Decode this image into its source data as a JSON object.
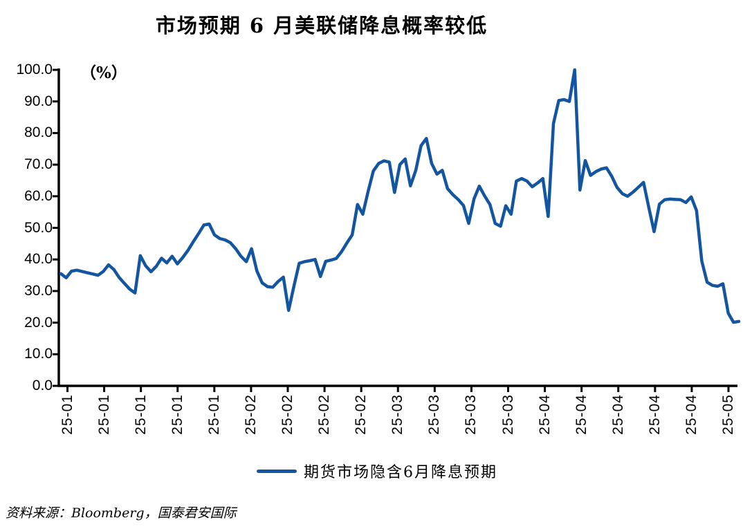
{
  "header": {
    "title": "市场预期 6 月美联储降息概率较低"
  },
  "y_axis": {
    "unit_label": "（%）"
  },
  "legend": {
    "label": "期货市场隐含6月降息预期"
  },
  "footer": {
    "source": "资料来源：Bloomberg，国泰君安国际"
  },
  "colors": {
    "line": "#1455A0",
    "axis": "#000000"
  },
  "chart_data": {
    "type": "line",
    "title": "市场预期 6 月美联储降息概率较低",
    "ylabel": "（%）",
    "ylim": [
      0,
      100
    ],
    "grid": false,
    "legend_position": "bottom",
    "y_tick_labels": [
      "0.0",
      "10.0",
      "20.0",
      "30.0",
      "40.0",
      "50.0",
      "60.0",
      "70.0",
      "80.0",
      "90.0",
      "100.0"
    ],
    "y_tick_values": [
      0,
      10,
      20,
      30,
      40,
      50,
      60,
      70,
      80,
      90,
      100
    ],
    "x_tick_labels": [
      "25-01",
      "25-01",
      "25-01",
      "25-01",
      "25-01",
      "25-02",
      "25-02",
      "25-02",
      "25-02",
      "25-03",
      "25-03",
      "25-03",
      "25-03",
      "25-04",
      "25-04",
      "25-04",
      "25-04",
      "25-04",
      "25-05"
    ],
    "series": [
      {
        "name": "期货市场隐含6月降息预期",
        "color": "#1455A0",
        "values": [
          35.5,
          34.2,
          36.3,
          36.6,
          36.2,
          35.8,
          35.4,
          35.0,
          36.2,
          38.3,
          36.8,
          34.3,
          32.4,
          30.6,
          29.4,
          41.2,
          38.0,
          36.1,
          37.8,
          40.4,
          38.9,
          41.0,
          38.6,
          40.6,
          42.9,
          45.6,
          48.2,
          50.9,
          51.2,
          47.8,
          46.6,
          46.2,
          45.3,
          43.4,
          41.0,
          39.3,
          43.4,
          36.4,
          32.6,
          31.4,
          31.2,
          33.0,
          34.4,
          23.9,
          31.6,
          38.8,
          39.3,
          39.6,
          40.0,
          34.6,
          39.4,
          39.8,
          40.3,
          42.5,
          45.2,
          47.8,
          57.4,
          54.3,
          61.5,
          68.0,
          70.4,
          71.2,
          70.8,
          61.2,
          70.0,
          71.8,
          63.3,
          68.2,
          76.0,
          78.3,
          70.4,
          67.0,
          68.2,
          62.4,
          60.5,
          59.0,
          57.1,
          51.4,
          59.2,
          63.2,
          60.1,
          57.4,
          51.4,
          50.5,
          57.0,
          54.3,
          64.8,
          65.6,
          64.8,
          63.0,
          64.2,
          65.6,
          53.6,
          83.0,
          90.3,
          90.6,
          90.0,
          100.0,
          62.0,
          71.3,
          66.6,
          67.8,
          68.6,
          69.0,
          66.3,
          62.8,
          60.8,
          60.0,
          61.3,
          62.8,
          64.4,
          56.5,
          48.8,
          57.5,
          58.9,
          59.1,
          59.0,
          58.9,
          58.0,
          59.8,
          55.5,
          39.5,
          32.8,
          31.8,
          31.5,
          32.3,
          23.0,
          20.1,
          20.4
        ]
      }
    ]
  }
}
